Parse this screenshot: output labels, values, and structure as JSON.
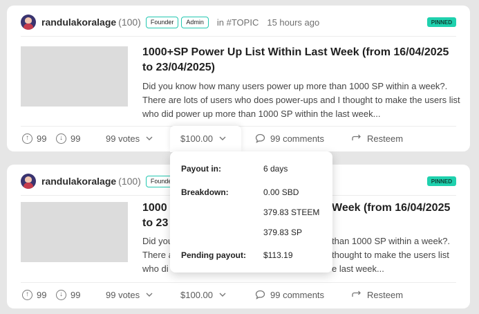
{
  "posts": [
    {
      "author": "randulakoralage",
      "reputation": "(100)",
      "badges": [
        "Founder",
        "Admin"
      ],
      "topic": "in #TOPIC",
      "time": "15 hours ago",
      "pinned": "PINNED",
      "title_line1": "1000+SP Power Up List Within Last Week (from 16/04/2025",
      "title_line2": "to 23/04/2025)",
      "body_line1": "Did you know how many users power up more than 1000 SP within a week?.",
      "body_line2": "There are lots of users who does power-ups and I thought to make the users list",
      "body_line3": "who did power up more than 1000 SP within the last week...",
      "upvotes": "99",
      "downvotes": "99",
      "votes": "99 votes",
      "payout": "$100.00",
      "comments": "99 comments",
      "resteem": "Resteem"
    },
    {
      "author": "randulakoralage",
      "reputation": "(100)",
      "badges": [
        "Founder"
      ],
      "pinned": "PINNED",
      "title_line1_left": "1000",
      "title_line1_right": "Week (from 16/04/2025",
      "title_line2": "to 23",
      "body_line1_left": "Did you",
      "body_line1_right": "than 1000 SP within a week?.",
      "body_line2_left": "There a",
      "body_line2_right": "thought to make the users list",
      "body_line3_left": "who di",
      "body_line3_right": "e last week...",
      "upvotes": "99",
      "downvotes": "99",
      "votes": "99 votes",
      "payout": "$100.00",
      "comments": "99 comments",
      "resteem": "Resteem"
    }
  ],
  "payout_popup": {
    "payout_in_label": "Payout in:",
    "payout_in_value": "6 days",
    "breakdown_label": "Breakdown:",
    "breakdown_values": [
      "0.00 SBD",
      "379.83 STEEM",
      "379.83 SP"
    ],
    "pending_label": "Pending payout:",
    "pending_value": "$113.19"
  },
  "colors": {
    "accent": "#1fd1ae",
    "badge_border": "#22c7b0",
    "background": "#e6e6e6"
  },
  "icons": [
    "upvote-icon",
    "downvote-icon",
    "chevron-down-icon",
    "comment-icon",
    "resteem-icon"
  ]
}
